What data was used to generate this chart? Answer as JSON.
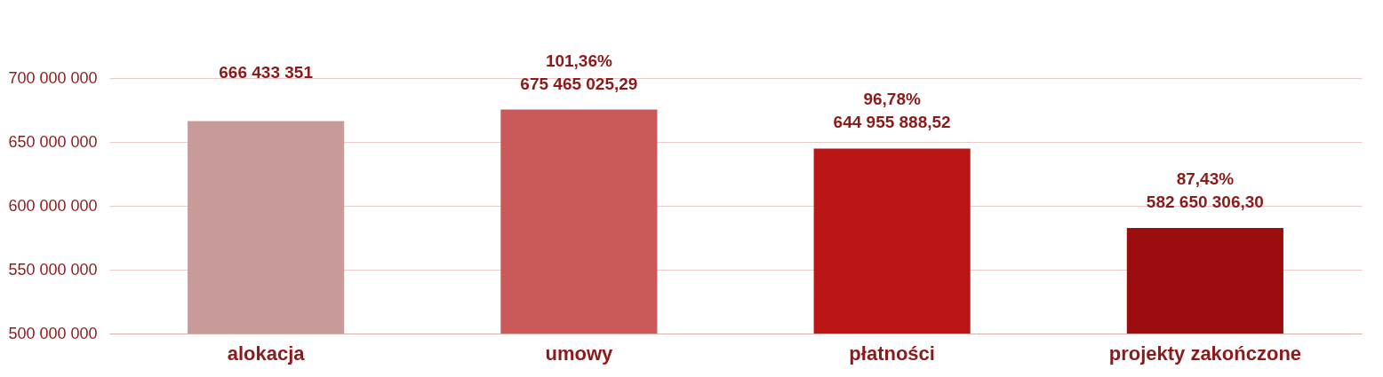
{
  "chart_data": {
    "type": "bar",
    "categories": [
      "alokacja",
      "umowy",
      "płatności",
      "projekty zakończone"
    ],
    "values": [
      666433351,
      675465025.29,
      644955888.52,
      582650306.3
    ],
    "colors": [
      "#c99a9a",
      "#cc5959",
      "#b91515",
      "#9c0d0d"
    ],
    "value_labels": [
      "666 433 351",
      "101,36%\n675 465 025,29",
      "96,78%\n644 955 888,52",
      "87,43%\n582 650 306,30"
    ],
    "ylim": [
      500000000,
      760000000
    ],
    "yticks": [
      {
        "value": 500000000,
        "label": "500 000 000"
      },
      {
        "value": 550000000,
        "label": "550 000 000"
      },
      {
        "value": 600000000,
        "label": "600 000 000"
      },
      {
        "value": 650000000,
        "label": "650 000 000"
      },
      {
        "value": 700000000,
        "label": "700 000 000"
      }
    ],
    "grid": "y"
  }
}
